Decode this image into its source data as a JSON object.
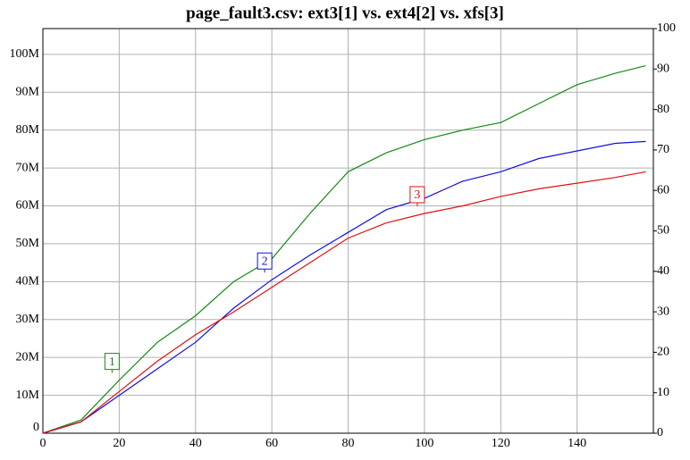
{
  "chart_data": {
    "type": "line",
    "title": "page_fault3.csv: ext3[1] vs. ext4[2] vs. xfs[3]",
    "x": [
      0,
      10,
      20,
      30,
      40,
      50,
      60,
      70,
      80,
      90,
      100,
      110,
      120,
      130,
      140,
      150,
      158
    ],
    "series": [
      {
        "name": "1",
        "color": "#138a13",
        "values": [
          0,
          3500000,
          14000000,
          24000000,
          31000000,
          40000000,
          46000000,
          58000000,
          69000000,
          74000000,
          77500000,
          80000000,
          82000000,
          87000000,
          92000000,
          95000000,
          97000000
        ]
      },
      {
        "name": "2",
        "color": "#1010e0",
        "values": [
          0,
          3000000,
          10000000,
          17000000,
          24000000,
          33000000,
          40500000,
          47000000,
          53000000,
          59000000,
          62000000,
          66500000,
          69000000,
          72500000,
          74500000,
          76500000,
          77000000
        ]
      },
      {
        "name": "3",
        "color": "#e01010",
        "values": [
          0,
          3000000,
          11000000,
          19000000,
          26000000,
          32000000,
          38500000,
          45000000,
          51500000,
          55500000,
          58000000,
          60000000,
          62500000,
          64500000,
          66000000,
          67500000,
          69000000
        ]
      }
    ],
    "xlim": [
      0,
      160
    ],
    "xticks": [
      0,
      20,
      40,
      60,
      80,
      100,
      120,
      140
    ],
    "ylim": [
      0,
      106800000
    ],
    "yticks": [
      0,
      {
        "value": 10000000,
        "label": "10M"
      },
      {
        "value": 20000000,
        "label": "20M"
      },
      {
        "value": 30000000,
        "label": "30M"
      },
      {
        "value": 40000000,
        "label": "40M"
      },
      {
        "value": 50000000,
        "label": "50M"
      },
      {
        "value": 60000000,
        "label": "60M"
      },
      {
        "value": 70000000,
        "label": "70M"
      },
      {
        "value": 80000000,
        "label": "80M"
      },
      {
        "value": 90000000,
        "label": "90M"
      },
      {
        "value": 100000000,
        "label": "100M"
      }
    ],
    "y2lim": [
      0,
      100
    ],
    "y2ticks": [
      0,
      10,
      20,
      30,
      40,
      50,
      60,
      70,
      80,
      90,
      100
    ],
    "grid": true
  }
}
